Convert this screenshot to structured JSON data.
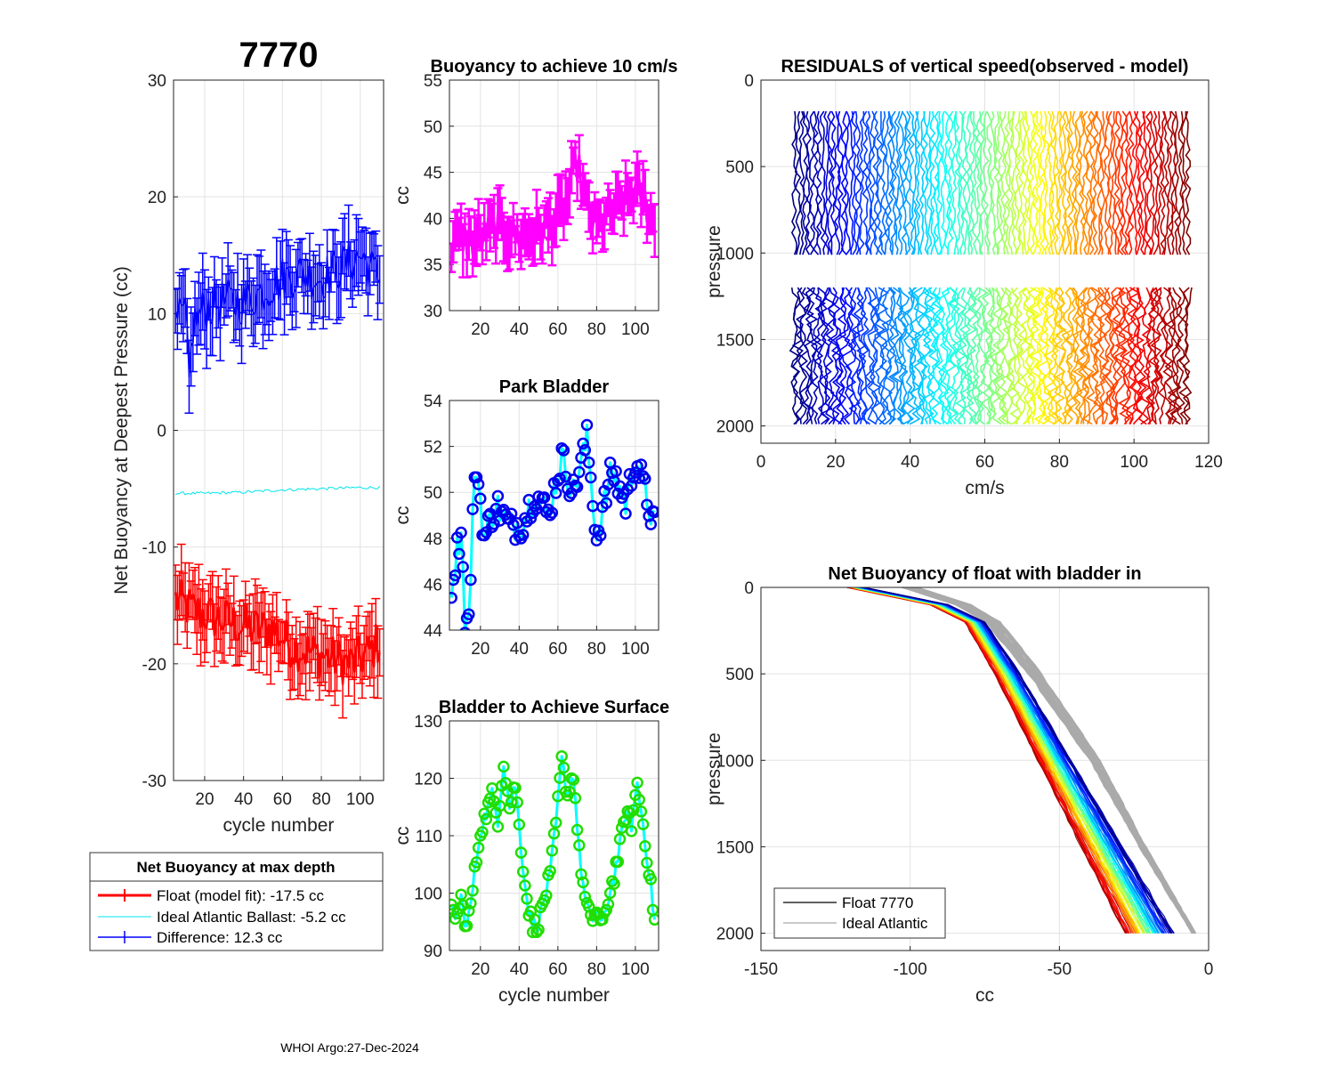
{
  "figure_title": "7770",
  "footer": "WHOI Argo:27-Dec-2024",
  "legend_box": {
    "title": "Net Buoyancy at max depth",
    "entries": [
      {
        "label": "Float (model fit): -17.5 cc",
        "color": "#ff0000"
      },
      {
        "label": "Ideal Atlantic Ballast:  -5.2 cc",
        "color": "#00e5ee"
      },
      {
        "label": "Difference:  12.3 cc",
        "color": "#0000ff"
      }
    ]
  },
  "chart_data": [
    {
      "id": "net-buoyancy",
      "type": "line",
      "title": "",
      "xlabel": "cycle number",
      "ylabel": "Net Buoyancy at Deepest Pressure (cc)",
      "xlim": [
        4,
        112
      ],
      "ylim": [
        -30,
        30
      ],
      "xticks": [
        "20",
        "40",
        "60",
        "80",
        "100"
      ],
      "yticks": [
        "-30",
        "-20",
        "-10",
        "0",
        "10",
        "20",
        "30"
      ],
      "series": [
        {
          "name": "Float (model fit)",
          "color": "#ff0000",
          "error": 2.2,
          "x": [
            5,
            15,
            25,
            35,
            45,
            55,
            65,
            75,
            85,
            95,
            105,
            110
          ],
          "y": [
            -14.5,
            -15.5,
            -16,
            -16.5,
            -17,
            -17,
            -18.5,
            -19,
            -19.5,
            -20,
            -19,
            -18
          ]
        },
        {
          "name": "Ideal Atlantic Ballast",
          "color": "#00e5ee",
          "error": 0,
          "x": [
            5,
            20,
            40,
            60,
            80,
            100,
            110
          ],
          "y": [
            -5.4,
            -5.4,
            -5.3,
            -5.1,
            -5.0,
            -4.9,
            -4.9
          ]
        },
        {
          "name": "Difference",
          "color": "#0000ff",
          "error": 2.3,
          "x": [
            5,
            10,
            12,
            14,
            20,
            30,
            40,
            50,
            60,
            70,
            80,
            90,
            100,
            110
          ],
          "y": [
            9,
            10,
            4,
            9,
            10.5,
            11,
            11,
            12,
            13,
            13.5,
            13,
            14,
            15,
            13
          ]
        }
      ]
    },
    {
      "id": "buoyancy-10cms",
      "type": "line",
      "title": "Buoyancy to achieve 10 cm/s",
      "xlabel": "",
      "ylabel": "cc",
      "xlim": [
        4,
        112
      ],
      "ylim": [
        30,
        55
      ],
      "xticks": [
        "20",
        "40",
        "60",
        "80",
        "100"
      ],
      "yticks": [
        "30",
        "35",
        "40",
        "45",
        "50",
        "55"
      ],
      "series": [
        {
          "name": "buoyancy",
          "color": "#ff00ff",
          "error": 2.0,
          "x": [
            5,
            10,
            15,
            20,
            30,
            40,
            50,
            60,
            65,
            70,
            75,
            80,
            90,
            100,
            105,
            110
          ],
          "y": [
            37,
            38,
            37.5,
            38,
            39,
            38,
            38.5,
            40,
            42,
            46,
            41,
            39,
            41,
            43,
            42,
            39
          ]
        }
      ]
    },
    {
      "id": "park-bladder",
      "type": "line",
      "title": "Park Bladder",
      "xlabel": "",
      "ylabel": "cc",
      "xlim": [
        4,
        112
      ],
      "ylim": [
        44,
        54
      ],
      "xticks": [
        "20",
        "40",
        "60",
        "80",
        "100"
      ],
      "yticks": [
        "44",
        "46",
        "48",
        "50",
        "52",
        "54"
      ],
      "series": [
        {
          "name": "park bladder",
          "color": "#00ffff",
          "marker_color": "#0000ee",
          "x": [
            5,
            8,
            10,
            12,
            14,
            16,
            18,
            22,
            28,
            35,
            42,
            48,
            55,
            62,
            68,
            75,
            80,
            88,
            95,
            100,
            105,
            110
          ],
          "y": [
            46,
            47.5,
            48.5,
            44.5,
            44.3,
            49,
            51.2,
            48,
            49.5,
            48.5,
            48.7,
            50,
            49,
            51.5,
            50,
            52.3,
            48,
            51,
            49.5,
            51.5,
            50,
            48.5
          ]
        }
      ]
    },
    {
      "id": "bladder-surface",
      "type": "line",
      "title": "Bladder to Achieve Surface",
      "xlabel": "cycle number",
      "ylabel": "cc",
      "xlim": [
        4,
        112
      ],
      "ylim": [
        90,
        130
      ],
      "xticks": [
        "20",
        "40",
        "60",
        "80",
        "100"
      ],
      "yticks": [
        "90",
        "100",
        "110",
        "120",
        "130"
      ],
      "series": [
        {
          "name": "surface bladder",
          "color": "#00ffff",
          "marker_color": "#22dd00",
          "x": [
            5,
            8,
            10,
            13,
            15,
            18,
            20,
            23,
            26,
            29,
            32,
            35,
            38,
            41,
            44,
            47,
            50,
            53,
            56,
            59,
            62,
            65,
            68,
            71,
            74,
            77,
            80,
            83,
            86,
            89,
            92,
            95,
            98,
            101,
            104,
            107,
            110
          ],
          "y": [
            97,
            96,
            99,
            94,
            98,
            106,
            111,
            114,
            117,
            113,
            123,
            115,
            119,
            108,
            99,
            94,
            95,
            99,
            103,
            112,
            123,
            117,
            121,
            107,
            99,
            95,
            97,
            94,
            99,
            103,
            108,
            114,
            112,
            119,
            112,
            104,
            95
          ]
        }
      ]
    },
    {
      "id": "residuals",
      "type": "line",
      "title": "RESIDUALS of vertical speed(observed - model)",
      "xlabel": "cm/s",
      "ylabel": "pressure",
      "xlim": [
        0,
        120
      ],
      "ylim": [
        0,
        2100
      ],
      "y_reversed": true,
      "xticks": [
        "0",
        "20",
        "40",
        "60",
        "80",
        "100",
        "120"
      ],
      "yticks": [
        "0",
        "500",
        "1000",
        "1500",
        "2000"
      ],
      "profiles": {
        "count": 112,
        "x_start": 9,
        "x_spacing": 0.95,
        "segments": [
          [
            180,
            1010
          ],
          [
            1200,
            1990
          ]
        ]
      }
    },
    {
      "id": "net-buoyancy-bladder-in",
      "type": "line",
      "title": "Net Buoyancy of float with bladder in",
      "xlabel": "cc",
      "ylabel": "pressure",
      "xlim": [
        -150,
        0
      ],
      "ylim": [
        0,
        2100
      ],
      "y_reversed": true,
      "xticks": [
        "-150",
        "-100",
        "-50",
        "0"
      ],
      "yticks": [
        "0",
        "500",
        "1000",
        "1500",
        "2000"
      ],
      "legend": [
        {
          "label": "Float 7770",
          "color": "#000000"
        },
        {
          "label": "Ideal Atlantic",
          "color": "#aaaaaa"
        }
      ],
      "float_profile": {
        "p": [
          0,
          100,
          200,
          500,
          1000,
          1500,
          2000
        ],
        "cc": [
          -118,
          -90,
          -78,
          -67,
          -51,
          -35,
          -19
        ]
      },
      "ideal_profile": {
        "p": [
          0,
          100,
          200,
          500,
          1000,
          1500,
          2000
        ],
        "cc": [
          -100,
          -82,
          -72,
          -58,
          -38,
          -22,
          -5
        ]
      }
    }
  ]
}
